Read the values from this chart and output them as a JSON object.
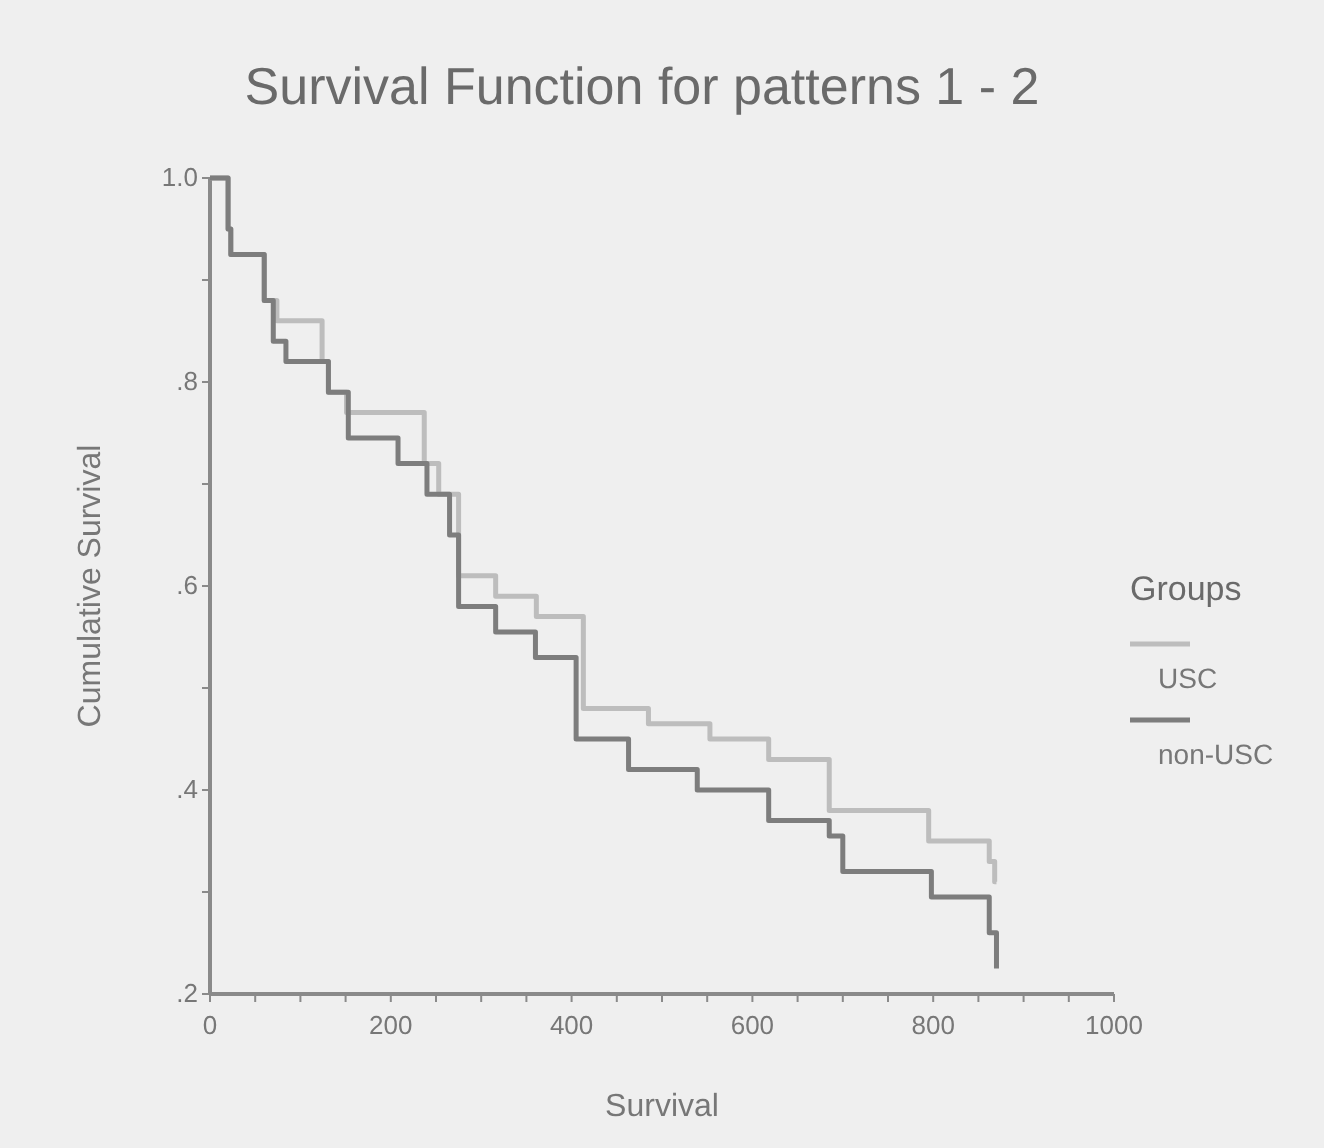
{
  "chart_data": {
    "type": "step",
    "title": "Survival Function for patterns 1 - 2",
    "xlabel": "Survival",
    "ylabel": "Cumulative Survival",
    "legend_title": "Groups",
    "legend": "right",
    "grid": false,
    "xlim": [
      0,
      1000
    ],
    "xticks": [
      0,
      {
        "value": 50,
        "label": null
      },
      {
        "value": 100,
        "label": null
      },
      {
        "value": 150,
        "label": null
      },
      200,
      {
        "value": 250,
        "label": null
      },
      {
        "value": 300,
        "label": null
      },
      {
        "value": 350,
        "label": null
      },
      400,
      {
        "value": 450,
        "label": null
      },
      {
        "value": 500,
        "label": null
      },
      {
        "value": 550,
        "label": null
      },
      600,
      {
        "value": 650,
        "label": null
      },
      {
        "value": 700,
        "label": null
      },
      {
        "value": 750,
        "label": null
      },
      800,
      {
        "value": 850,
        "label": null
      },
      {
        "value": 900,
        "label": null
      },
      {
        "value": 950,
        "label": null
      },
      1000
    ],
    "ylim": [
      0.2,
      1.0
    ],
    "yticks": [
      {
        "value": 0.2,
        "label": ".2"
      },
      {
        "value": 0.3,
        "label": null
      },
      {
        "value": 0.4,
        "label": ".4"
      },
      {
        "value": 0.5,
        "label": null
      },
      {
        "value": 0.6,
        "label": ".6"
      },
      {
        "value": 0.7,
        "label": null
      },
      {
        "value": 0.8,
        "label": ".8"
      },
      {
        "value": 0.9,
        "label": null
      },
      {
        "value": 1.0,
        "label": "1.0"
      }
    ],
    "series": [
      {
        "name": "USC",
        "color": "#bdbdbd",
        "x": [
          0,
          20,
          23,
          60,
          74,
          124,
          131,
          151,
          237,
          253,
          275,
          316,
          361,
          413,
          485,
          553,
          618,
          685,
          795,
          862,
          868,
          870
        ],
        "values": [
          1.0,
          0.95,
          0.925,
          0.88,
          0.86,
          0.82,
          0.79,
          0.77,
          0.72,
          0.69,
          0.61,
          0.59,
          0.57,
          0.48,
          0.465,
          0.45,
          0.43,
          0.38,
          0.35,
          0.33,
          0.31,
          0.31
        ]
      },
      {
        "name": "non-USC",
        "color": "#7d7d7d",
        "x": [
          0,
          20,
          23,
          60,
          70,
          84,
          131,
          153,
          208,
          240,
          265,
          275,
          316,
          360,
          405,
          463,
          539,
          618,
          685,
          700,
          798,
          862,
          870
        ],
        "values": [
          1.0,
          0.95,
          0.925,
          0.88,
          0.84,
          0.82,
          0.79,
          0.745,
          0.72,
          0.69,
          0.65,
          0.58,
          0.555,
          0.53,
          0.45,
          0.42,
          0.4,
          0.37,
          0.355,
          0.32,
          0.295,
          0.26,
          0.225
        ]
      }
    ]
  }
}
